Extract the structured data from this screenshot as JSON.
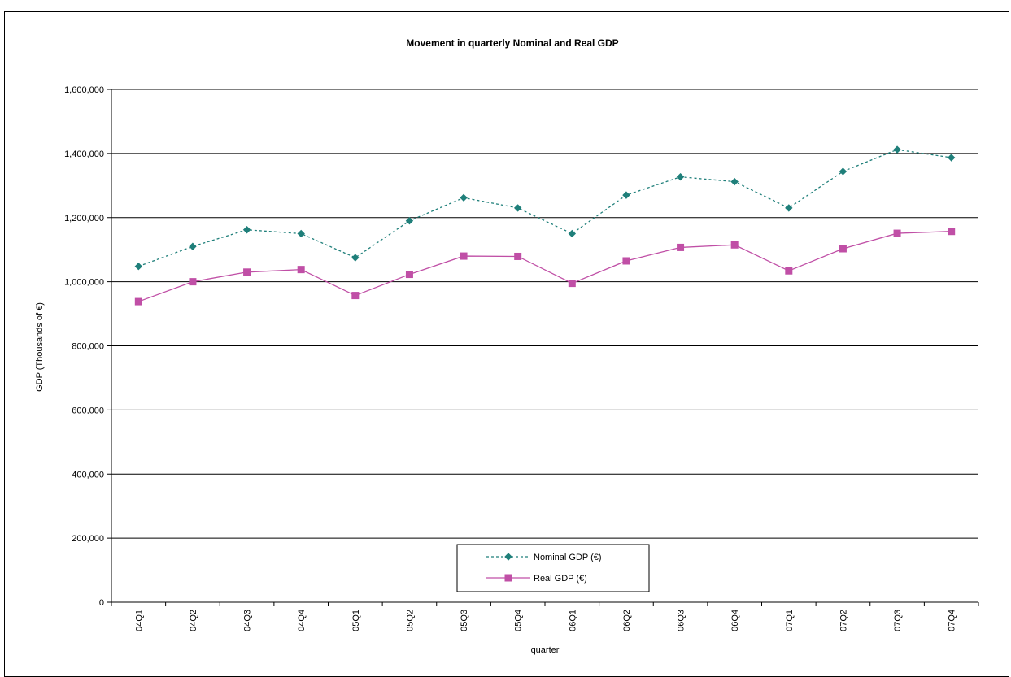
{
  "chart_data": {
    "type": "line",
    "title": "Movement in quarterly Nominal and Real GDP",
    "xlabel": "quarter",
    "ylabel": "GDP (Thousands of €)",
    "ylim": [
      0,
      1600000
    ],
    "y_ticks": [
      {
        "value": 0,
        "label": "0"
      },
      {
        "value": 200000,
        "label": "200,000"
      },
      {
        "value": 400000,
        "label": "400,000"
      },
      {
        "value": 600000,
        "label": "600,000"
      },
      {
        "value": 800000,
        "label": "800,000"
      },
      {
        "value": 1000000,
        "label": "1,000,000"
      },
      {
        "value": 1200000,
        "label": "1,200,000"
      },
      {
        "value": 1400000,
        "label": "1,400,000"
      },
      {
        "value": 1600000,
        "label": "1,600,000"
      }
    ],
    "grid": true,
    "legend_position": "bottom-center",
    "categories": [
      "04Q1",
      "04Q2",
      "04Q3",
      "04Q4",
      "05Q1",
      "05Q2",
      "05Q3",
      "05Q4",
      "06Q1",
      "06Q2",
      "06Q3",
      "06Q4",
      "07Q1",
      "07Q2",
      "07Q3",
      "07Q4"
    ],
    "series": [
      {
        "name": "Nominal GDP (€)",
        "color": "#1f7f7a",
        "line_style": "dotted",
        "marker": "diamond",
        "values": [
          1048000,
          1110000,
          1162000,
          1150000,
          1075000,
          1190000,
          1262000,
          1230000,
          1150000,
          1270000,
          1327000,
          1312000,
          1230000,
          1344000,
          1412000,
          1387000
        ]
      },
      {
        "name": "Real GDP (€)",
        "color": "#c04fa6",
        "line_style": "solid",
        "marker": "square",
        "values": [
          938000,
          1000000,
          1030000,
          1038000,
          957000,
          1023000,
          1080000,
          1079000,
          995000,
          1065000,
          1107000,
          1115000,
          1034000,
          1103000,
          1151000,
          1157000
        ]
      }
    ]
  }
}
